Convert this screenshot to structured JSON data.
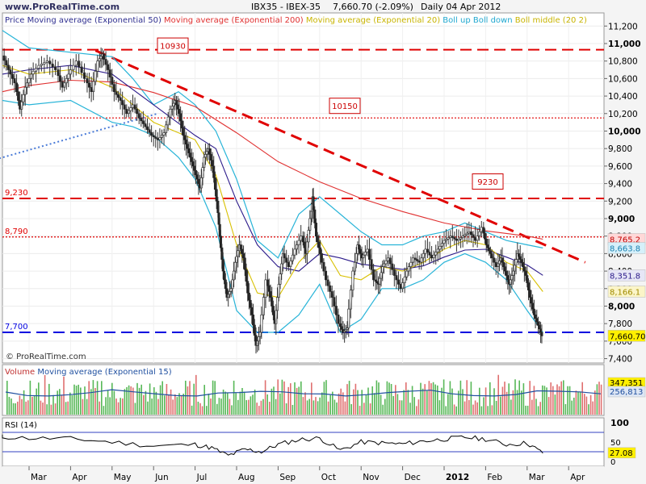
{
  "header": {
    "site": "www.ProRealTime.com",
    "title": "IBX35 - IBEX-35",
    "last": "7,660.70 (-2.09%)",
    "period": "Daily  04 Apr 2012"
  },
  "watermark": "© ProRealTime.com",
  "colors": {
    "price": "#404040",
    "ma50": "#2b1a8a",
    "ma200": "#e03030",
    "ma20": "#d8c000",
    "bollinger": "#28b4d8",
    "trend_red": "#e00000",
    "support_blue": "#0000e0",
    "trend_dotted_blue": "#4a7bd8",
    "volume_up": "#58b858",
    "volume_down": "#e07070",
    "volume_ma": "#2050a0",
    "rsi": "#000000",
    "rsi_levels": "#3040c0"
  },
  "chart_data": [
    {
      "type": "line",
      "panel": "price",
      "legend": [
        {
          "text": "Price",
          "color": "#303090"
        },
        {
          "text": "Moving average (Exponential 50)",
          "color": "#303090"
        },
        {
          "text": "Moving average (Exponential 200)",
          "color": "#e03030"
        },
        {
          "text": "Moving average (Exponential 20)",
          "color": "#c8b400"
        },
        {
          "text": "Boll up Boll down",
          "color": "#20a8d0"
        },
        {
          "text": "Boll middle (20 2)",
          "color": "#c8b400"
        }
      ],
      "ylim": [
        7350,
        11350
      ],
      "y_ticks": [
        "11,200",
        "11,000",
        "10,800",
        "10,600",
        "10,400",
        "10,200",
        "10,000",
        "9,800",
        "9,600",
        "9,400",
        "9,200",
        "9,000",
        "8,800",
        "8,600",
        "8,400",
        "8,200",
        "8,000",
        "7,800",
        "7,600",
        "7,400"
      ],
      "x_ticks": [
        {
          "month": 1,
          "label": "Mar"
        },
        {
          "month": 2,
          "label": "Apr"
        },
        {
          "month": 3,
          "label": "May"
        },
        {
          "month": 4,
          "label": "Jun"
        },
        {
          "month": 5,
          "label": "Jul"
        },
        {
          "month": 6,
          "label": "Aug"
        },
        {
          "month": 7,
          "label": "Sep"
        },
        {
          "month": 8,
          "label": "Oct"
        },
        {
          "month": 9,
          "label": "Nov"
        },
        {
          "month": 10,
          "label": "Dec"
        },
        {
          "month": 11,
          "label": "2012"
        },
        {
          "month": 12,
          "label": "Feb"
        },
        {
          "month": 13,
          "label": "Mar"
        },
        {
          "month": 14,
          "label": "Apr"
        }
      ],
      "price_series": [
        [
          0.05,
          10760
        ],
        [
          0.15,
          10950
        ],
        [
          0.25,
          10800
        ],
        [
          0.4,
          10860
        ],
        [
          0.55,
          10700
        ],
        [
          0.7,
          10550
        ],
        [
          0.82,
          10250
        ],
        [
          0.95,
          10500
        ],
        [
          1.1,
          10650
        ],
        [
          1.3,
          10750
        ],
        [
          1.5,
          10800
        ],
        [
          1.7,
          10700
        ],
        [
          1.85,
          10500
        ],
        [
          2.0,
          10650
        ],
        [
          2.2,
          10800
        ],
        [
          2.4,
          10600
        ],
        [
          2.55,
          10450
        ],
        [
          2.7,
          10800
        ],
        [
          2.8,
          10880
        ],
        [
          2.95,
          10700
        ],
        [
          3.1,
          10450
        ],
        [
          3.25,
          10350
        ],
        [
          3.4,
          10200
        ],
        [
          3.55,
          10300
        ],
        [
          3.7,
          10150
        ],
        [
          3.85,
          10050
        ],
        [
          4.0,
          9950
        ],
        [
          4.15,
          9900
        ],
        [
          4.3,
          9980
        ],
        [
          4.45,
          10250
        ],
        [
          4.55,
          10350
        ],
        [
          4.65,
          10200
        ],
        [
          4.75,
          9950
        ],
        [
          4.85,
          9800
        ],
        [
          4.95,
          9650
        ],
        [
          5.05,
          9500
        ],
        [
          5.15,
          9350
        ],
        [
          5.25,
          9700
        ],
        [
          5.35,
          9800
        ],
        [
          5.45,
          9600
        ],
        [
          5.55,
          9200
        ],
        [
          5.62,
          8800
        ],
        [
          5.7,
          8400
        ],
        [
          5.8,
          8100
        ],
        [
          5.9,
          8200
        ],
        [
          6.0,
          8500
        ],
        [
          6.1,
          8700
        ],
        [
          6.2,
          8550
        ],
        [
          6.3,
          8150
        ],
        [
          6.4,
          7900
        ],
        [
          6.5,
          7550
        ],
        [
          6.6,
          7700
        ],
        [
          6.75,
          8300
        ],
        [
          6.85,
          8100
        ],
        [
          6.95,
          7800
        ],
        [
          7.05,
          8250
        ],
        [
          7.15,
          8600
        ],
        [
          7.3,
          8450
        ],
        [
          7.45,
          8650
        ],
        [
          7.6,
          8800
        ],
        [
          7.7,
          8600
        ],
        [
          7.8,
          9000
        ],
        [
          7.85,
          9250
        ],
        [
          7.95,
          8800
        ],
        [
          8.05,
          8600
        ],
        [
          8.2,
          8300
        ],
        [
          8.35,
          8100
        ],
        [
          8.5,
          7800
        ],
        [
          8.6,
          7700
        ],
        [
          8.7,
          7750
        ],
        [
          8.85,
          8400
        ],
        [
          8.95,
          8700
        ],
        [
          9.05,
          8550
        ],
        [
          9.2,
          8650
        ],
        [
          9.35,
          8300
        ],
        [
          9.45,
          8250
        ],
        [
          9.55,
          8450
        ],
        [
          9.7,
          8550
        ],
        [
          9.85,
          8350
        ],
        [
          10.0,
          8200
        ],
        [
          10.15,
          8400
        ],
        [
          10.3,
          8550
        ],
        [
          10.45,
          8500
        ],
        [
          10.6,
          8650
        ],
        [
          10.75,
          8550
        ],
        [
          10.9,
          8650
        ],
        [
          11.05,
          8750
        ],
        [
          11.2,
          8800
        ],
        [
          11.35,
          8750
        ],
        [
          11.5,
          8800
        ],
        [
          11.65,
          8850
        ],
        [
          11.8,
          8750
        ],
        [
          11.95,
          8900
        ],
        [
          12.05,
          8700
        ],
        [
          12.15,
          8600
        ],
        [
          12.3,
          8450
        ],
        [
          12.4,
          8550
        ],
        [
          12.5,
          8400
        ],
        [
          12.6,
          8250
        ],
        [
          12.7,
          8400
        ],
        [
          12.8,
          8600
        ],
        [
          12.9,
          8500
        ],
        [
          13.0,
          8350
        ],
        [
          13.1,
          8100
        ],
        [
          13.2,
          7900
        ],
        [
          13.3,
          7780
        ],
        [
          13.38,
          7660
        ]
      ],
      "ema50": [
        [
          0,
          10650
        ],
        [
          1,
          10700
        ],
        [
          2,
          10750
        ],
        [
          3,
          10650
        ],
        [
          4,
          10300
        ],
        [
          5,
          9950
        ],
        [
          5.5,
          9800
        ],
        [
          6,
          9200
        ],
        [
          6.5,
          8700
        ],
        [
          7,
          8450
        ],
        [
          7.5,
          8400
        ],
        [
          8,
          8600
        ],
        [
          8.5,
          8550
        ],
        [
          9,
          8480
        ],
        [
          9.5,
          8450
        ],
        [
          10,
          8420
        ],
        [
          10.5,
          8460
        ],
        [
          11,
          8560
        ],
        [
          11.5,
          8640
        ],
        [
          12,
          8650
        ],
        [
          12.5,
          8560
        ],
        [
          13,
          8470
        ],
        [
          13.38,
          8352
        ]
      ],
      "ema200": [
        [
          0,
          10450
        ],
        [
          1,
          10520
        ],
        [
          2,
          10580
        ],
        [
          3,
          10560
        ],
        [
          4,
          10440
        ],
        [
          5,
          10280
        ],
        [
          6,
          9980
        ],
        [
          7,
          9650
        ],
        [
          8,
          9420
        ],
        [
          9,
          9230
        ],
        [
          10,
          9080
        ],
        [
          11,
          8950
        ],
        [
          12,
          8860
        ],
        [
          12.5,
          8830
        ],
        [
          13,
          8800
        ],
        [
          13.38,
          8765
        ]
      ],
      "ema20": [
        [
          0,
          10750
        ],
        [
          1,
          10650
        ],
        [
          2,
          10700
        ],
        [
          3,
          10500
        ],
        [
          4,
          10100
        ],
        [
          5,
          9900
        ],
        [
          5.5,
          9500
        ],
        [
          6,
          8700
        ],
        [
          6.5,
          8150
        ],
        [
          7,
          8100
        ],
        [
          7.5,
          8500
        ],
        [
          8,
          8750
        ],
        [
          8.5,
          8350
        ],
        [
          9,
          8300
        ],
        [
          9.5,
          8450
        ],
        [
          10,
          8400
        ],
        [
          10.5,
          8500
        ],
        [
          11,
          8650
        ],
        [
          11.5,
          8750
        ],
        [
          12,
          8700
        ],
        [
          12.5,
          8500
        ],
        [
          13,
          8400
        ],
        [
          13.38,
          8166
        ]
      ],
      "boll_up": [
        [
          0,
          11150
        ],
        [
          1,
          10950
        ],
        [
          2,
          10900
        ],
        [
          3,
          10850
        ],
        [
          3.5,
          10600
        ],
        [
          4,
          10300
        ],
        [
          4.6,
          10450
        ],
        [
          5,
          10300
        ],
        [
          5.5,
          10000
        ],
        [
          6,
          9450
        ],
        [
          6.5,
          8750
        ],
        [
          7,
          8550
        ],
        [
          7.5,
          9050
        ],
        [
          8,
          9250
        ],
        [
          8.5,
          9050
        ],
        [
          9,
          8850
        ],
        [
          9.5,
          8700
        ],
        [
          10,
          8700
        ],
        [
          10.5,
          8800
        ],
        [
          11,
          8850
        ],
        [
          11.5,
          8950
        ],
        [
          12,
          8850
        ],
        [
          12.5,
          8750
        ],
        [
          13,
          8700
        ],
        [
          13.38,
          8664
        ]
      ],
      "boll_down": [
        [
          0,
          10350
        ],
        [
          1,
          10300
        ],
        [
          2,
          10350
        ],
        [
          3,
          10100
        ],
        [
          3.5,
          10050
        ],
        [
          4,
          9950
        ],
        [
          4.6,
          9700
        ],
        [
          5,
          9450
        ],
        [
          5.5,
          8900
        ],
        [
          6,
          7950
        ],
        [
          6.5,
          7700
        ],
        [
          7,
          7700
        ],
        [
          7.5,
          7900
        ],
        [
          8,
          8250
        ],
        [
          8.5,
          7700
        ],
        [
          9,
          7850
        ],
        [
          9.5,
          8200
        ],
        [
          10,
          8200
        ],
        [
          10.5,
          8300
        ],
        [
          11,
          8500
        ],
        [
          11.5,
          8600
        ],
        [
          12,
          8500
        ],
        [
          12.5,
          8300
        ],
        [
          13,
          7950
        ],
        [
          13.38,
          7700
        ]
      ],
      "horizontal_lines": [
        {
          "value": 10930,
          "label": "10930",
          "style": "dashed",
          "color": "#e00000"
        },
        {
          "value": 10150,
          "label": "10150",
          "style": "dotted",
          "color": "#e00000"
        },
        {
          "value": 9230,
          "label": "9,230",
          "style": "dashed",
          "color": "#e00000"
        },
        {
          "value": 8790,
          "label": "8,790",
          "style": "dotted",
          "color": "#e00000"
        },
        {
          "value": 7700,
          "label": "7,700",
          "style": "dashed",
          "color": "#0000e0"
        }
      ],
      "trendlines": [
        {
          "from": [
            2.6,
            10920
          ],
          "to": [
            14.4,
            8500
          ],
          "style": "dashed",
          "color": "#e00000"
        },
        {
          "from": [
            0,
            9650
          ],
          "to": [
            4.1,
            10200
          ],
          "style": "dotted",
          "color": "#4a7bd8"
        }
      ],
      "level_boxes": [
        "10930",
        "10150",
        "9230"
      ],
      "value_tags": [
        {
          "value": 8765.2,
          "label": "8,765.2",
          "bg": "#ffd8d8",
          "fg": "#c00000"
        },
        {
          "value": 8663.8,
          "label": "8,663.8",
          "bg": "#d6f0fa",
          "fg": "#1a80b0"
        },
        {
          "value": 8351.8,
          "label": "8,351.8",
          "bg": "#e6e6f6",
          "fg": "#2b1a8a"
        },
        {
          "value": 8166.1,
          "label": "8,166.1",
          "bg": "#fbf5c8",
          "fg": "#a08a00"
        },
        {
          "value": 7660.7,
          "label": "7,660.70",
          "bg": "#fff000",
          "fg": "#000000"
        }
      ]
    },
    {
      "type": "bar",
      "panel": "volume",
      "legend": [
        {
          "text": "Volume",
          "color": "#c03030"
        },
        {
          "text": "Moving average (Exponential 15)",
          "color": "#2050a0"
        }
      ],
      "value_tags": [
        {
          "label": "347,351",
          "bg": "#fff000",
          "fg": "#000000"
        },
        {
          "label": "256,813",
          "bg": "#dde6f4",
          "fg": "#2050a0"
        }
      ]
    },
    {
      "type": "line",
      "panel": "rsi",
      "legend": [
        {
          "text": "RSI (14)",
          "color": "#000000"
        }
      ],
      "ylim": [
        0,
        100
      ],
      "levels": [
        70,
        30
      ],
      "y_ticks": [
        "100",
        "50",
        "0"
      ],
      "value_tags": [
        {
          "label": "27.08",
          "bg": "#fff000",
          "fg": "#000000"
        }
      ],
      "rsi_series": [
        [
          0,
          62
        ],
        [
          1,
          58
        ],
        [
          2,
          57
        ],
        [
          3,
          50
        ],
        [
          4,
          42
        ],
        [
          5,
          45
        ],
        [
          5.4,
          38
        ],
        [
          5.8,
          22
        ],
        [
          6.2,
          35
        ],
        [
          6.6,
          30
        ],
        [
          7,
          45
        ],
        [
          7.5,
          55
        ],
        [
          8,
          58
        ],
        [
          8.5,
          33
        ],
        [
          9,
          50
        ],
        [
          9.5,
          48
        ],
        [
          10,
          46
        ],
        [
          10.5,
          52
        ],
        [
          11,
          56
        ],
        [
          11.5,
          60
        ],
        [
          12,
          56
        ],
        [
          12.5,
          45
        ],
        [
          13,
          48
        ],
        [
          13.38,
          27
        ]
      ]
    }
  ]
}
